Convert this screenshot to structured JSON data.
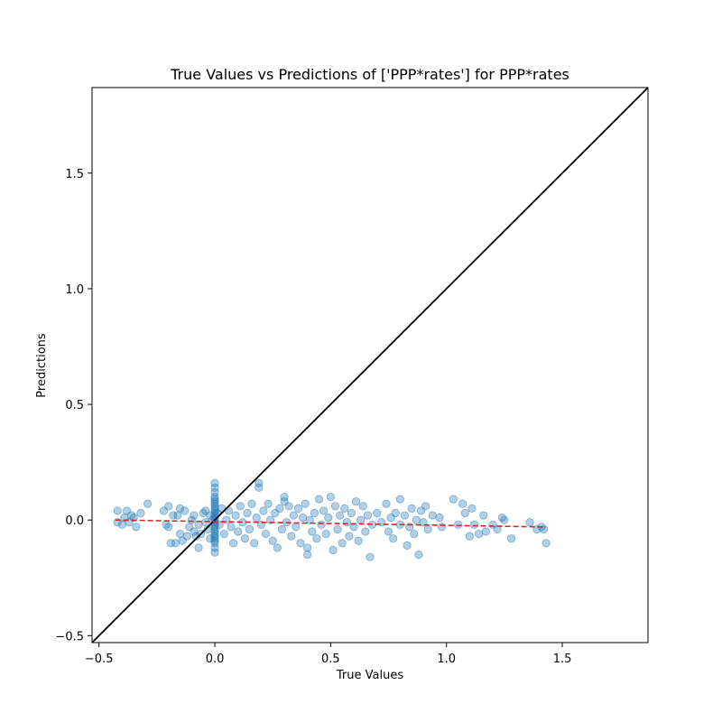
{
  "chart_data": {
    "type": "scatter",
    "title": "True Values vs Predictions of ['PPP*rates'] for PPP*rates",
    "xlabel": "True Values",
    "ylabel": "Predictions",
    "xlim": [
      -0.53,
      1.87
    ],
    "ylim": [
      -0.53,
      1.87
    ],
    "xticks": [
      "−0.5",
      "0.0",
      "0.5",
      "1.0",
      "1.5"
    ],
    "xtick_values": [
      -0.5,
      0.0,
      0.5,
      1.0,
      1.5
    ],
    "yticks": [
      "−0.5",
      "0.0",
      "0.5",
      "1.0",
      "1.5"
    ],
    "ytick_values": [
      -0.5,
      0.0,
      0.5,
      1.0,
      1.5
    ],
    "grid": false,
    "legend": "none",
    "colors": {
      "points": "#1f77b4",
      "trend": "#d62728",
      "identity": "#000000"
    },
    "series": [
      {
        "kind": "scatter",
        "points": [
          [
            -0.42,
            0.04
          ],
          [
            -0.42,
            -0.01
          ],
          [
            -0.4,
            -0.02
          ],
          [
            -0.39,
            0.01
          ],
          [
            -0.38,
            0.04
          ],
          [
            -0.37,
            -0.01
          ],
          [
            -0.36,
            0.02
          ],
          [
            -0.35,
            0.01
          ],
          [
            -0.34,
            -0.03
          ],
          [
            -0.32,
            0.03
          ],
          [
            -0.29,
            0.07
          ],
          [
            -0.22,
            0.04
          ],
          [
            -0.21,
            -0.02
          ],
          [
            -0.2,
            -0.03
          ],
          [
            -0.2,
            0.06
          ],
          [
            -0.19,
            -0.1
          ],
          [
            -0.18,
            0.02
          ],
          [
            -0.17,
            -0.1
          ],
          [
            -0.16,
            0.02
          ],
          [
            -0.15,
            -0.06
          ],
          [
            -0.15,
            0.05
          ],
          [
            -0.14,
            -0.09
          ],
          [
            -0.13,
            0.04
          ],
          [
            -0.12,
            -0.07
          ],
          [
            -0.11,
            -0.03
          ],
          [
            -0.1,
            0.0
          ],
          [
            -0.09,
            -0.05
          ],
          [
            -0.09,
            0.02
          ],
          [
            -0.08,
            -0.07
          ],
          [
            -0.07,
            -0.12
          ],
          [
            -0.07,
            -0.02
          ],
          [
            -0.06,
            -0.06
          ],
          [
            -0.05,
            0.03
          ],
          [
            -0.04,
            -0.01
          ],
          [
            -0.04,
            0.04
          ],
          [
            -0.03,
            -0.04
          ],
          [
            -0.02,
            0.02
          ],
          [
            -0.02,
            -0.08
          ],
          [
            -0.01,
            0.0
          ],
          [
            0.0,
            0.16
          ],
          [
            0.0,
            0.14
          ],
          [
            0.0,
            0.12
          ],
          [
            0.0,
            0.1
          ],
          [
            0.0,
            0.09
          ],
          [
            0.0,
            0.08
          ],
          [
            0.0,
            0.07
          ],
          [
            0.0,
            0.06
          ],
          [
            0.0,
            0.05
          ],
          [
            0.0,
            0.04
          ],
          [
            0.0,
            0.03
          ],
          [
            0.0,
            0.02
          ],
          [
            0.0,
            0.01
          ],
          [
            0.0,
            0.0
          ],
          [
            0.0,
            -0.01
          ],
          [
            0.0,
            -0.02
          ],
          [
            0.0,
            -0.03
          ],
          [
            0.0,
            -0.04
          ],
          [
            0.0,
            -0.05
          ],
          [
            0.0,
            -0.06
          ],
          [
            0.0,
            -0.07
          ],
          [
            0.0,
            -0.08
          ],
          [
            0.0,
            -0.09
          ],
          [
            0.0,
            -0.1
          ],
          [
            0.0,
            -0.12
          ],
          [
            0.0,
            -0.14
          ],
          [
            0.01,
            0.03
          ],
          [
            0.02,
            -0.02
          ],
          [
            0.03,
            0.05
          ],
          [
            0.04,
            -0.06
          ],
          [
            0.05,
            0.0
          ],
          [
            0.06,
            0.04
          ],
          [
            0.07,
            -0.03
          ],
          [
            0.08,
            -0.1
          ],
          [
            0.09,
            0.02
          ],
          [
            0.1,
            -0.05
          ],
          [
            0.11,
            0.06
          ],
          [
            0.12,
            -0.01
          ],
          [
            0.13,
            -0.08
          ],
          [
            0.14,
            0.03
          ],
          [
            0.15,
            -0.04
          ],
          [
            0.16,
            0.07
          ],
          [
            0.17,
            -0.1
          ],
          [
            0.18,
            0.01
          ],
          [
            0.19,
            0.16
          ],
          [
            0.19,
            0.14
          ],
          [
            0.2,
            -0.02
          ],
          [
            0.21,
            0.04
          ],
          [
            0.22,
            -0.06
          ],
          [
            0.23,
            0.07
          ],
          [
            0.24,
            0.0
          ],
          [
            0.25,
            -0.09
          ],
          [
            0.26,
            0.03
          ],
          [
            0.27,
            -0.12
          ],
          [
            0.28,
            0.05
          ],
          [
            0.29,
            -0.04
          ],
          [
            0.3,
            0.1
          ],
          [
            0.3,
            0.08
          ],
          [
            0.31,
            -0.01
          ],
          [
            0.32,
            0.06
          ],
          [
            0.33,
            -0.07
          ],
          [
            0.34,
            0.02
          ],
          [
            0.35,
            -0.03
          ],
          [
            0.36,
            0.05
          ],
          [
            0.37,
            -0.1
          ],
          [
            0.38,
            0.01
          ],
          [
            0.39,
            0.07
          ],
          [
            0.4,
            -0.15
          ],
          [
            0.4,
            -0.12
          ],
          [
            0.41,
            0.0
          ],
          [
            0.42,
            -0.05
          ],
          [
            0.43,
            0.03
          ],
          [
            0.44,
            -0.08
          ],
          [
            0.45,
            0.09
          ],
          [
            0.46,
            -0.02
          ],
          [
            0.47,
            0.04
          ],
          [
            0.48,
            -0.06
          ],
          [
            0.49,
            0.01
          ],
          [
            0.5,
            0.1
          ],
          [
            0.51,
            -0.13
          ],
          [
            0.52,
            0.06
          ],
          [
            0.53,
            -0.04
          ],
          [
            0.54,
            0.02
          ],
          [
            0.55,
            -0.1
          ],
          [
            0.56,
            0.05
          ],
          [
            0.57,
            -0.01
          ],
          [
            0.58,
            -0.07
          ],
          [
            0.59,
            0.03
          ],
          [
            0.6,
            -0.03
          ],
          [
            0.61,
            0.08
          ],
          [
            0.62,
            -0.09
          ],
          [
            0.63,
            0.0
          ],
          [
            0.64,
            0.06
          ],
          [
            0.65,
            -0.05
          ],
          [
            0.66,
            0.02
          ],
          [
            0.67,
            -0.16
          ],
          [
            0.68,
            -0.02
          ],
          [
            0.7,
            0.03
          ],
          [
            0.72,
            -0.01
          ],
          [
            0.74,
            0.07
          ],
          [
            0.75,
            -0.05
          ],
          [
            0.76,
            0.01
          ],
          [
            0.77,
            -0.08
          ],
          [
            0.78,
            0.03
          ],
          [
            0.8,
            0.09
          ],
          [
            0.8,
            -0.02
          ],
          [
            0.82,
            0.02
          ],
          [
            0.83,
            -0.11
          ],
          [
            0.84,
            -0.03
          ],
          [
            0.85,
            0.05
          ],
          [
            0.86,
            -0.06
          ],
          [
            0.87,
            0.0
          ],
          [
            0.88,
            -0.15
          ],
          [
            0.89,
            0.04
          ],
          [
            0.9,
            -0.01
          ],
          [
            0.91,
            0.06
          ],
          [
            0.92,
            -0.04
          ],
          [
            0.94,
            0.02
          ],
          [
            0.97,
            0.01
          ],
          [
            0.98,
            -0.03
          ],
          [
            1.03,
            0.09
          ],
          [
            1.05,
            -0.02
          ],
          [
            1.07,
            0.07
          ],
          [
            1.08,
            0.03
          ],
          [
            1.1,
            -0.07
          ],
          [
            1.11,
            0.05
          ],
          [
            1.12,
            -0.02
          ],
          [
            1.14,
            -0.06
          ],
          [
            1.16,
            0.02
          ],
          [
            1.17,
            -0.05
          ],
          [
            1.2,
            -0.02
          ],
          [
            1.22,
            -0.04
          ],
          [
            1.24,
            0.01
          ],
          [
            1.25,
            0.0
          ],
          [
            1.28,
            -0.08
          ],
          [
            1.36,
            -0.01
          ],
          [
            1.39,
            -0.04
          ],
          [
            1.41,
            -0.03
          ],
          [
            1.42,
            -0.04
          ],
          [
            1.43,
            -0.1
          ]
        ]
      },
      {
        "kind": "trend-line",
        "points": [
          [
            -0.43,
            0.0
          ],
          [
            1.43,
            -0.03
          ]
        ]
      },
      {
        "kind": "identity-line",
        "points": [
          [
            -0.53,
            -0.53
          ],
          [
            1.87,
            1.87
          ]
        ]
      }
    ]
  }
}
